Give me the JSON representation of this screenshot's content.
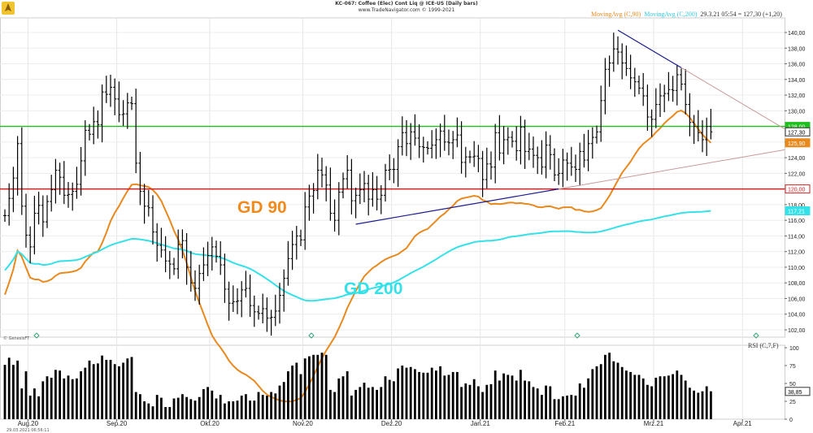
{
  "header": {
    "title": "KC-067: Coffee (Elec) Cont Liq @ ICE-US  (Daily bars)",
    "copyright": "www.TradeNavigator.com © 1999-2021"
  },
  "legend": {
    "ma90_label": "MovingAvg (C,90)",
    "ma200_label": "MovingAvg (C,200)",
    "last_info": "29.3.21 05:54 = 127,30 (+1,20)",
    "ma90_color": "#e8891e",
    "ma200_color": "#35e1e8"
  },
  "annotations": {
    "gd90": "GD 90",
    "gd200": "GD 200",
    "gd90_color": "#f08a1c",
    "gd200_color": "#35e1e8"
  },
  "footer": {
    "genesis": "© GenesisFT",
    "timestamp": "29.03.2021 06:56:11"
  },
  "chart_data": [
    {
      "type": "ohlc",
      "title": "KC-067: Coffee (Elec) Cont Liq @ ICE-US  (Daily bars)",
      "x": [
        "Aug.20",
        "Sep.20",
        "Okt.20",
        "Nov.20",
        "Dez.20",
        "Jan.21",
        "Feb.21",
        "Mrz.21",
        "Apr.21"
      ],
      "y_ticks": [
        102,
        104,
        106,
        108,
        110,
        112,
        114,
        116,
        118,
        120,
        122,
        124,
        126,
        128,
        130,
        132,
        134,
        136,
        138,
        140
      ],
      "ylim": [
        100.5,
        142.5
      ],
      "tick_format": "comma2",
      "closes": [
        116.6,
        118.8,
        121.4,
        125.8,
        117.8,
        114.1,
        112.6,
        116.9,
        117.9,
        115.8,
        118.4,
        119.9,
        122.4,
        121.5,
        119.2,
        119.3,
        119.7,
        120.6,
        123.6,
        127.5,
        127.0,
        128.6,
        128.2,
        132.4,
        132.1,
        133.0,
        131.5,
        129.5,
        129.6,
        131.0,
        130.9,
        123.3,
        119.7,
        117.8,
        117.6,
        114.5,
        112.8,
        112.2,
        110.8,
        110.4,
        109.8,
        112.9,
        113.4,
        110.0,
        108.0,
        107.3,
        109.2,
        110.3,
        111.5,
        112.6,
        111.4,
        110.3,
        107.2,
        105.4,
        105.6,
        105.7,
        107.1,
        107.3,
        105.1,
        104.3,
        104.1,
        104.7,
        103.5,
        103.6,
        104.4,
        106.4,
        108.6,
        111.1,
        112.9,
        114.0,
        113.5,
        117.7,
        119.1,
        119.8,
        122.4,
        121.8,
        120.5,
        116.9,
        116.0,
        119.6,
        121.3,
        122.4,
        118.5,
        119.2,
        119.9,
        120.7,
        118.7,
        119.9,
        118.7,
        119.2,
        122.4,
        122.5,
        122.5,
        125.4,
        127.2,
        125.8,
        127.3,
        126.5,
        125.4,
        125.3,
        125.2,
        125.6,
        126.3,
        127.4,
        126.0,
        125.9,
        126.3,
        126.9,
        123.4,
        124.1,
        124.1,
        124.2,
        123.9,
        121.2,
        123.2,
        122.8,
        127.2,
        124.6,
        126.3,
        126.6,
        126.1,
        124.9,
        127.9,
        124.8,
        125.1,
        124.3,
        124.0,
        122.8,
        125.6,
        124.4,
        121.8,
        122.0,
        123.7,
        123.3,
        122.8,
        122.5,
        124.8,
        123.7,
        125.8,
        126.6,
        127.3,
        131.3,
        135.3,
        136.1,
        137.9,
        137.5,
        136.1,
        135.4,
        134.2,
        133.7,
        132.9,
        131.9,
        129.2,
        128.9,
        130.8,
        131.9,
        132.2,
        132.7,
        132.6,
        134.6,
        133.4,
        130.8,
        128.5,
        128.0,
        127.2,
        126.3,
        128.0,
        127.3
      ],
      "last_close": 127.3,
      "series": [
        {
          "name": "MovingAvg (C,90)",
          "y_start": 106.5,
          "y_end": 125.9
        },
        {
          "name": "MovingAvg (C,200)",
          "y_start": 109.6,
          "y_end": 117.2
        }
      ],
      "hlines": [
        128.0,
        120.0
      ],
      "hline_labels": [
        "128,00",
        "120,00"
      ],
      "axis_labels": [
        "127,30",
        "125,90",
        "117,21"
      ],
      "trendlines": [
        {
          "from": [
            "Nov.20",
            115.5
          ],
          "to": [
            "Feb.21",
            120.0
          ]
        },
        {
          "from": [
            "Feb.21",
            140.3
          ],
          "to": [
            "Mrz.21",
            135.5
          ]
        }
      ]
    },
    {
      "type": "bar",
      "title": "RSI (C,7,F)",
      "ylim": [
        0,
        100
      ],
      "y_ticks": [
        0,
        25,
        50,
        75,
        100
      ],
      "last_value": "38,85",
      "values": [
        76,
        86,
        76,
        82,
        43,
        67,
        33,
        43,
        32,
        53,
        60,
        58,
        69,
        68,
        57,
        61,
        56,
        57,
        67,
        72,
        82,
        77,
        78,
        89,
        83,
        83,
        77,
        74,
        79,
        85,
        87,
        38,
        35,
        25,
        22,
        18,
        34,
        30,
        17,
        17,
        29,
        30,
        35,
        31,
        28,
        26,
        31,
        42,
        45,
        40,
        29,
        34,
        22,
        25,
        25,
        26,
        33,
        35,
        26,
        26,
        38,
        34,
        33,
        38,
        36,
        47,
        52,
        67,
        75,
        79,
        63,
        85,
        88,
        90,
        90,
        93,
        90,
        41,
        38,
        57,
        60,
        67,
        33,
        41,
        45,
        51,
        44,
        45,
        41,
        45,
        60,
        55,
        53,
        71,
        75,
        72,
        73,
        70,
        66,
        65,
        65,
        72,
        68,
        74,
        61,
        62,
        66,
        66,
        45,
        50,
        48,
        56,
        46,
        38,
        48,
        49,
        68,
        54,
        64,
        62,
        61,
        54,
        69,
        54,
        53,
        45,
        43,
        34,
        47,
        46,
        28,
        28,
        32,
        33,
        34,
        33,
        50,
        44,
        57,
        70,
        74,
        77,
        90,
        93,
        81,
        79,
        73,
        68,
        66,
        62,
        62,
        57,
        48,
        46,
        58,
        60,
        60,
        61,
        63,
        68,
        62,
        54,
        44,
        40,
        37,
        39,
        46,
        39
      ]
    }
  ]
}
